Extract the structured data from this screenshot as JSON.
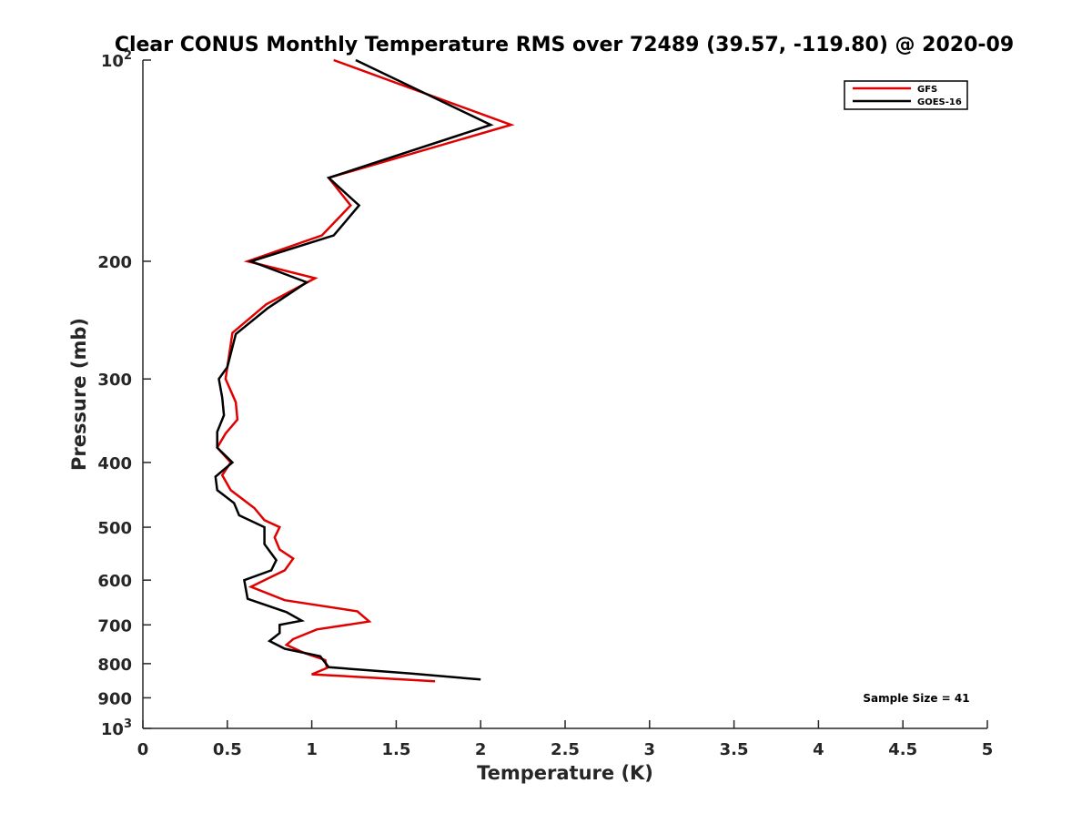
{
  "chart_data": {
    "type": "line",
    "title": "Clear CONUS Monthly Temperature RMS over 72489 (39.57, -119.80) @ 2020-09",
    "xlabel": "Temperature (K)",
    "ylabel": "Pressure (mb)",
    "xlim": [
      0,
      5
    ],
    "ylim": [
      1000,
      100
    ],
    "y_scale": "log",
    "y_reversed": true,
    "x_ticks": [
      "0",
      "0.5",
      "1",
      "1.5",
      "2",
      "2.5",
      "3",
      "3.5",
      "4",
      "4.5",
      "5"
    ],
    "y_ticks": [
      {
        "value": 100,
        "base": "10",
        "exp": "2"
      },
      {
        "value": 200,
        "label": "200"
      },
      {
        "value": 300,
        "label": "300"
      },
      {
        "value": 400,
        "label": "400"
      },
      {
        "value": 500,
        "label": "500"
      },
      {
        "value": 600,
        "label": "600"
      },
      {
        "value": 700,
        "label": "700"
      },
      {
        "value": 800,
        "label": "800"
      },
      {
        "value": 900,
        "label": "900"
      },
      {
        "value": 1000,
        "base": "10",
        "exp": "3"
      }
    ],
    "grid": false,
    "legend_position": "top-right",
    "annotation": "Sample Size = 41",
    "series": [
      {
        "name": "GFS",
        "color": "#e00000",
        "points": [
          [
            1.13,
            100
          ],
          [
            2.18,
            125
          ],
          [
            1.1,
            150
          ],
          [
            1.23,
            165
          ],
          [
            1.06,
            183
          ],
          [
            0.62,
            200
          ],
          [
            1.02,
            212
          ],
          [
            0.73,
            232
          ],
          [
            0.53,
            256
          ],
          [
            0.49,
            300
          ],
          [
            0.55,
            325
          ],
          [
            0.56,
            345
          ],
          [
            0.49,
            362
          ],
          [
            0.44,
            380
          ],
          [
            0.52,
            400
          ],
          [
            0.47,
            418
          ],
          [
            0.52,
            440
          ],
          [
            0.66,
            468
          ],
          [
            0.72,
            488
          ],
          [
            0.81,
            500
          ],
          [
            0.78,
            518
          ],
          [
            0.81,
            540
          ],
          [
            0.89,
            557
          ],
          [
            0.84,
            580
          ],
          [
            0.72,
            600
          ],
          [
            0.64,
            614
          ],
          [
            0.84,
            643
          ],
          [
            1.27,
            668
          ],
          [
            1.34,
            692
          ],
          [
            1.03,
            711
          ],
          [
            0.89,
            735
          ],
          [
            0.85,
            750
          ],
          [
            0.96,
            772
          ],
          [
            1.08,
            790
          ],
          [
            1.09,
            812
          ],
          [
            1.0,
            830
          ],
          [
            1.73,
            850
          ]
        ]
      },
      {
        "name": "GOES-16",
        "color": "#000000",
        "points": [
          [
            1.26,
            100
          ],
          [
            2.06,
            125
          ],
          [
            1.1,
            150
          ],
          [
            1.28,
            165
          ],
          [
            1.13,
            183
          ],
          [
            0.64,
            200
          ],
          [
            0.97,
            215
          ],
          [
            0.74,
            235
          ],
          [
            0.55,
            257
          ],
          [
            0.5,
            288
          ],
          [
            0.45,
            300
          ],
          [
            0.47,
            320
          ],
          [
            0.48,
            340
          ],
          [
            0.44,
            360
          ],
          [
            0.44,
            380
          ],
          [
            0.53,
            400
          ],
          [
            0.43,
            420
          ],
          [
            0.44,
            440
          ],
          [
            0.54,
            460
          ],
          [
            0.57,
            480
          ],
          [
            0.72,
            500
          ],
          [
            0.72,
            530
          ],
          [
            0.79,
            560
          ],
          [
            0.76,
            580
          ],
          [
            0.6,
            600
          ],
          [
            0.62,
            640
          ],
          [
            0.85,
            670
          ],
          [
            0.94,
            690
          ],
          [
            0.81,
            700
          ],
          [
            0.81,
            720
          ],
          [
            0.75,
            740
          ],
          [
            0.84,
            760
          ],
          [
            1.05,
            780
          ],
          [
            1.1,
            810
          ],
          [
            1.59,
            828
          ],
          [
            2.0,
            845
          ]
        ]
      }
    ]
  }
}
